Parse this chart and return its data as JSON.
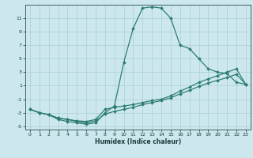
{
  "xlabel": "Humidex (Indice chaleur)",
  "line_color": "#2e7d72",
  "bg_color": "#cce8ee",
  "grid_color": "#aacdd6",
  "xlim": [
    -0.5,
    23.5
  ],
  "ylim": [
    -5.5,
    13.0
  ],
  "yticks": [
    -5,
    -3,
    -1,
    1,
    3,
    5,
    7,
    9,
    11
  ],
  "xticks": [
    0,
    1,
    2,
    3,
    4,
    5,
    6,
    7,
    8,
    9,
    10,
    11,
    12,
    13,
    14,
    15,
    16,
    17,
    18,
    19,
    20,
    21,
    22,
    23
  ],
  "line1_x": [
    0,
    1,
    2,
    3,
    4,
    5,
    6,
    7,
    8,
    9,
    10,
    11,
    12,
    13,
    14,
    15,
    16,
    17,
    18,
    19,
    20,
    21,
    22,
    23
  ],
  "line1_y": [
    -2.5,
    -3.0,
    -3.3,
    -4.0,
    -4.3,
    -4.5,
    -4.7,
    -4.5,
    -3.0,
    -2.0,
    4.5,
    9.5,
    12.5,
    12.7,
    12.5,
    11.0,
    7.0,
    6.5,
    5.0,
    3.5,
    3.0,
    2.8,
    1.5,
    1.2
  ],
  "line2_x": [
    0,
    1,
    2,
    3,
    4,
    5,
    6,
    7,
    8,
    9,
    10,
    11,
    12,
    13,
    14,
    15,
    16,
    17,
    18,
    19,
    20,
    21,
    22,
    23
  ],
  "line2_y": [
    -2.5,
    -3.0,
    -3.3,
    -3.8,
    -4.0,
    -4.2,
    -4.3,
    -4.0,
    -2.5,
    -2.2,
    -2.0,
    -1.8,
    -1.5,
    -1.2,
    -1.0,
    -0.5,
    0.2,
    0.8,
    1.5,
    2.0,
    2.5,
    3.0,
    3.5,
    1.2
  ],
  "line3_x": [
    0,
    1,
    2,
    3,
    4,
    5,
    6,
    7,
    8,
    9,
    10,
    11,
    12,
    13,
    14,
    15,
    16,
    17,
    18,
    19,
    20,
    21,
    22,
    23
  ],
  "line3_y": [
    -2.5,
    -3.0,
    -3.3,
    -3.8,
    -4.0,
    -4.3,
    -4.5,
    -4.2,
    -3.2,
    -2.8,
    -2.5,
    -2.2,
    -1.8,
    -1.5,
    -1.2,
    -0.8,
    -0.2,
    0.3,
    0.9,
    1.4,
    1.8,
    2.2,
    2.7,
    1.2
  ]
}
